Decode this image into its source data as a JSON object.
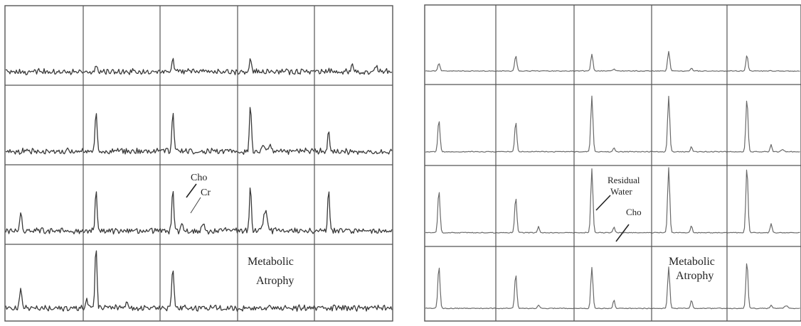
{
  "panels": [
    {
      "id": "left",
      "rows": 4,
      "cols": 5,
      "colors": {
        "trace": "#3a3a3a",
        "grid": "#555555",
        "background": "#ffffff"
      },
      "annotations": [
        {
          "key": "cho",
          "text": "Cho"
        },
        {
          "key": "cr",
          "text": "Cr"
        }
      ],
      "region_label": [
        "Metabolic",
        "Atrophy"
      ]
    },
    {
      "id": "right",
      "rows": 4,
      "cols": 5,
      "colors": {
        "trace": "#6a6a6a",
        "grid": "#555555",
        "background": "#ffffff"
      },
      "annotations": [
        {
          "key": "residual_water",
          "lines": [
            "Residual",
            "Water"
          ]
        },
        {
          "key": "cho",
          "text": "Cho"
        }
      ],
      "region_label": [
        "Metabolic",
        "Atrophy"
      ]
    }
  ]
}
